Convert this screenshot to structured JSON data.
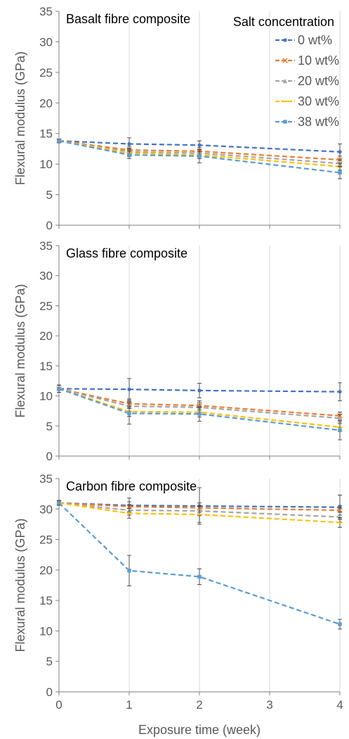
{
  "chart_data": [
    {
      "type": "line",
      "title": "Basalt fibre composite",
      "xlabel": "",
      "ylabel": "Flexural modulus (GPa)",
      "x": [
        0,
        1,
        2,
        3,
        4
      ],
      "xlim": [
        0,
        4
      ],
      "ylim": [
        0,
        35
      ],
      "yticks": [
        0,
        5,
        10,
        15,
        20,
        25,
        30,
        35
      ],
      "xticks": [],
      "grid": true,
      "legend": {
        "title": "Salt concentration",
        "placement": "top-right",
        "entries": [
          "0 wt%",
          "10 wt%",
          "20 wt%",
          "30 wt%",
          "38 wt%"
        ]
      },
      "series": [
        {
          "name": "0 wt%",
          "color": "#4472C4",
          "marker": "circle",
          "x": [
            0,
            1,
            2,
            4
          ],
          "values": [
            13.8,
            13.3,
            13.1,
            12.0
          ],
          "errors": [
            0.3,
            1.0,
            0.7,
            1.3
          ]
        },
        {
          "name": "10 wt%",
          "color": "#ED7D31",
          "marker": "x",
          "x": [
            0,
            1,
            2,
            4
          ],
          "values": [
            13.8,
            12.3,
            12.1,
            10.7
          ],
          "errors": [
            0.3,
            0.6,
            0.6,
            0.6
          ]
        },
        {
          "name": "20 wt%",
          "color": "#A5A5A5",
          "marker": "triangle",
          "x": [
            0,
            1,
            2,
            4
          ],
          "values": [
            13.8,
            12.0,
            11.8,
            10.1
          ],
          "errors": [
            0.3,
            0.6,
            0.6,
            0.6
          ]
        },
        {
          "name": "30 wt%",
          "color": "#FFC000",
          "marker": "dash",
          "x": [
            0,
            1,
            2,
            4
          ],
          "values": [
            13.8,
            11.8,
            11.5,
            9.6
          ],
          "errors": [
            0.3,
            0.6,
            0.6,
            0.6
          ]
        },
        {
          "name": "38 wt%",
          "color": "#5B9BD5",
          "marker": "square",
          "x": [
            0,
            1,
            2,
            4
          ],
          "values": [
            13.8,
            11.5,
            11.3,
            8.6
          ],
          "errors": [
            0.3,
            0.6,
            1.1,
            1.0
          ]
        }
      ]
    },
    {
      "type": "line",
      "title": "Glass fibre composite",
      "xlabel": "",
      "ylabel": "Flexural modulus (GPa)",
      "x": [
        0,
        1,
        2,
        3,
        4
      ],
      "xlim": [
        0,
        4
      ],
      "ylim": [
        0,
        35
      ],
      "yticks": [
        0,
        5,
        10,
        15,
        20,
        25,
        30,
        35
      ],
      "xticks": [],
      "grid": true,
      "series": [
        {
          "name": "0 wt%",
          "color": "#4472C4",
          "marker": "circle",
          "x": [
            0,
            1,
            2,
            4
          ],
          "values": [
            11.2,
            11.1,
            10.9,
            10.7
          ],
          "errors": [
            0.6,
            1.8,
            1.2,
            1.5
          ]
        },
        {
          "name": "10 wt%",
          "color": "#ED7D31",
          "marker": "x",
          "x": [
            0,
            1,
            2,
            4
          ],
          "values": [
            11.2,
            8.7,
            8.4,
            6.7
          ],
          "errors": [
            0.6,
            0.8,
            0.8,
            0.6
          ]
        },
        {
          "name": "20 wt%",
          "color": "#A5A5A5",
          "marker": "triangle",
          "x": [
            0,
            1,
            2,
            4
          ],
          "values": [
            11.2,
            8.3,
            8.1,
            6.3
          ],
          "errors": [
            0.6,
            0.8,
            0.8,
            0.6
          ]
        },
        {
          "name": "30 wt%",
          "color": "#FFC000",
          "marker": "dash",
          "x": [
            0,
            1,
            2,
            4
          ],
          "values": [
            11.2,
            7.4,
            7.3,
            4.8
          ],
          "errors": [
            0.6,
            0.8,
            0.8,
            0.6
          ]
        },
        {
          "name": "38 wt%",
          "color": "#5B9BD5",
          "marker": "square",
          "x": [
            0,
            1,
            2,
            4
          ],
          "values": [
            11.2,
            7.1,
            7.0,
            4.3
          ],
          "errors": [
            0.6,
            1.8,
            1.2,
            1.6
          ]
        }
      ]
    },
    {
      "type": "line",
      "title": "Carbon fibre composite",
      "xlabel": "Exposure time (week)",
      "ylabel": "Flexural modulus (GPa)",
      "x": [
        0,
        1,
        2,
        3,
        4
      ],
      "xlim": [
        0,
        4
      ],
      "ylim": [
        0,
        35
      ],
      "yticks": [
        0,
        5,
        10,
        15,
        20,
        25,
        30,
        35
      ],
      "xticks": [
        0,
        1,
        2,
        3,
        4
      ],
      "grid": true,
      "series": [
        {
          "name": "0 wt%",
          "color": "#4472C4",
          "marker": "circle",
          "x": [
            0,
            1,
            2,
            4
          ],
          "values": [
            31.0,
            30.6,
            30.5,
            30.3
          ],
          "errors": [
            0.4,
            1.2,
            3.0,
            2.0
          ]
        },
        {
          "name": "10 wt%",
          "color": "#ED7D31",
          "marker": "x",
          "x": [
            0,
            1,
            2,
            4
          ],
          "values": [
            31.0,
            30.4,
            30.2,
            29.8
          ],
          "errors": [
            0.4,
            0.8,
            0.8,
            0.8
          ]
        },
        {
          "name": "20 wt%",
          "color": "#A5A5A5",
          "marker": "triangle",
          "x": [
            0,
            1,
            2,
            4
          ],
          "values": [
            31.0,
            29.8,
            29.7,
            28.7
          ],
          "errors": [
            0.4,
            0.8,
            0.8,
            0.8
          ]
        },
        {
          "name": "30 wt%",
          "color": "#FFC000",
          "marker": "dash",
          "x": [
            0,
            1,
            2,
            4
          ],
          "values": [
            31.0,
            29.3,
            29.1,
            27.8
          ],
          "errors": [
            0.4,
            0.8,
            1.3,
            0.8
          ]
        },
        {
          "name": "38 wt%",
          "color": "#5B9BD5",
          "marker": "square",
          "x": [
            0,
            1,
            2,
            4
          ],
          "values": [
            31.0,
            19.9,
            18.9,
            11.1
          ],
          "errors": [
            0.4,
            2.5,
            1.3,
            0.8
          ]
        }
      ]
    }
  ]
}
